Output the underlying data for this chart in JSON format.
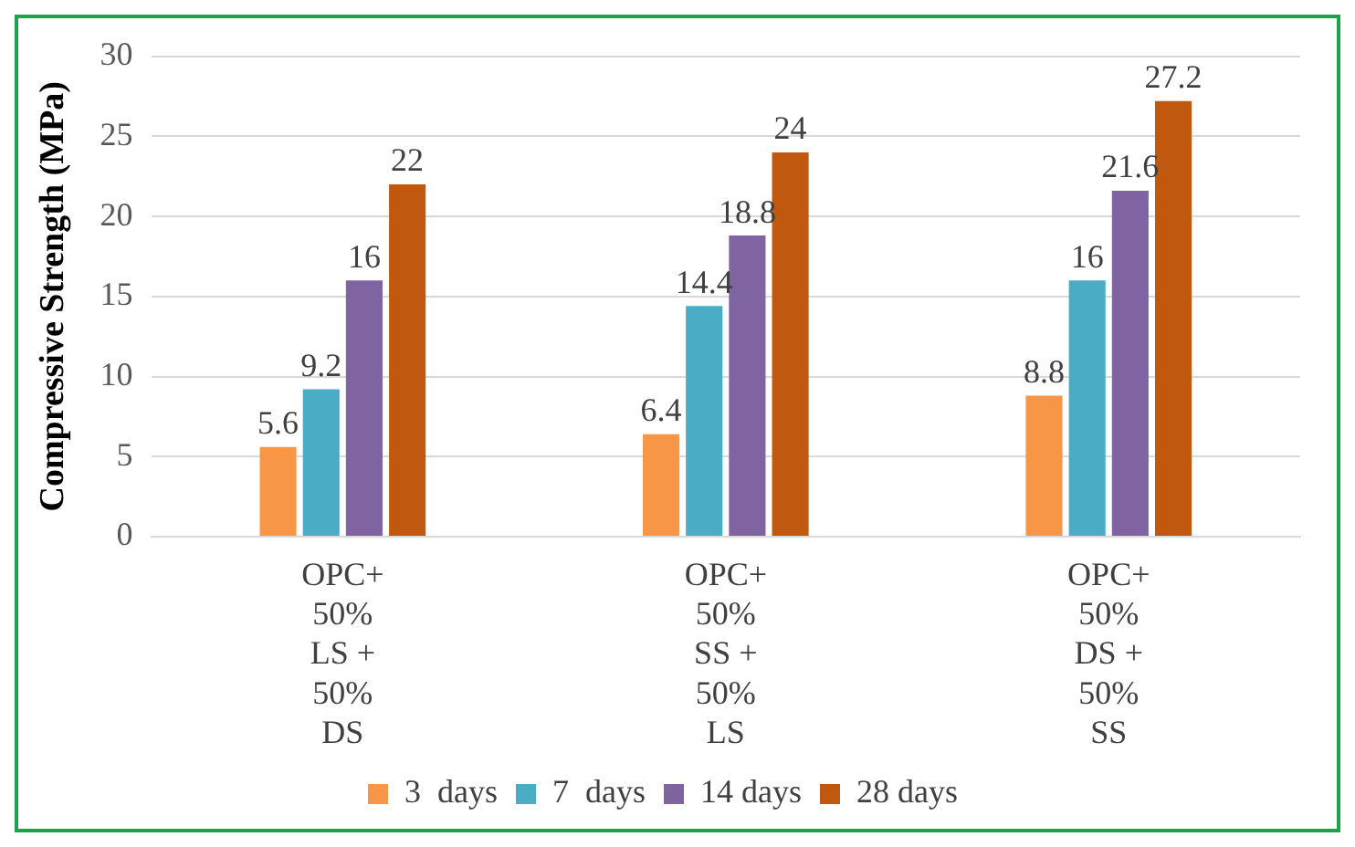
{
  "chart_data": {
    "type": "bar",
    "ylabel": "Compressive Strength (MPa)",
    "categories": [
      "OPC+ 50% LS + 50% DS",
      "OPC+ 50% SS + 50% LS",
      "OPC+ 50% DS + 50% SS"
    ],
    "series": [
      {
        "name": "3  days",
        "color": "#f79646",
        "values": [
          5.6,
          6.4,
          8.8
        ]
      },
      {
        "name": "7  days",
        "color": "#4bacc6",
        "values": [
          9.2,
          14.4,
          16
        ]
      },
      {
        "name": "14 days",
        "color": "#8064a2",
        "values": [
          16,
          18.8,
          21.6
        ]
      },
      {
        "name": "28 days",
        "color": "#c0580f",
        "values": [
          22,
          24,
          27.2
        ]
      }
    ],
    "ylim": [
      0,
      30
    ],
    "yticks": [
      0,
      5,
      10,
      15,
      20,
      25,
      30
    ],
    "grid": "y",
    "legend": "bottom",
    "data_labels": true
  }
}
